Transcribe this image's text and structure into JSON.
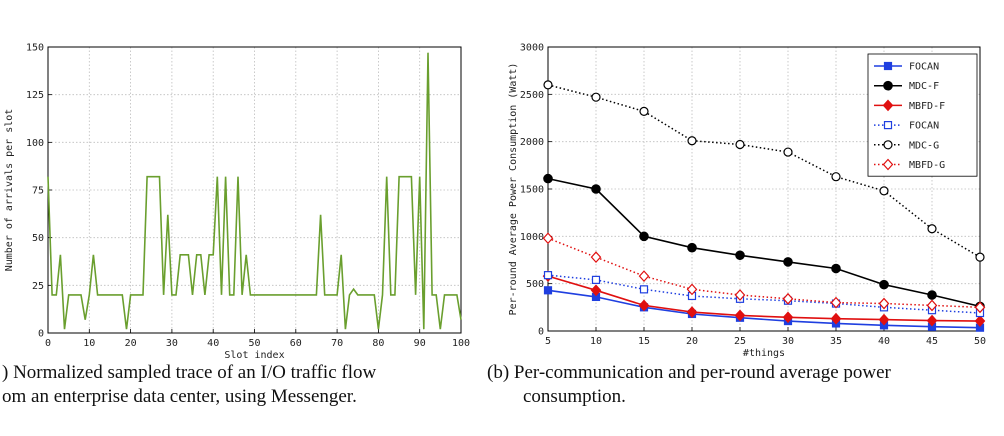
{
  "captions": {
    "a_line1": ") Normalized sampled trace of an I/O traffic flow",
    "a_line2": "om an enterprise data center, using Messenger.",
    "b_line1": "(b) Per-communication and per-round average power",
    "b_line2": "consumption."
  },
  "chart_data": [
    {
      "type": "line",
      "title": "",
      "xlabel": "Slot index",
      "ylabel": "Number of arrivals per slot",
      "xlim": [
        0,
        100
      ],
      "ylim": [
        0,
        150
      ],
      "xticks": [
        0,
        10,
        20,
        30,
        40,
        50,
        60,
        70,
        80,
        90,
        100
      ],
      "yticks": [
        0,
        25,
        50,
        75,
        100,
        125,
        150
      ],
      "grid": true,
      "color": "#6a9f2e",
      "series": [
        {
          "name": "",
          "x": [
            0,
            1,
            2,
            3,
            4,
            5,
            6,
            7,
            8,
            9,
            10,
            11,
            12,
            13,
            14,
            15,
            16,
            17,
            18,
            19,
            20,
            21,
            22,
            23,
            24,
            25,
            26,
            27,
            28,
            29,
            30,
            31,
            32,
            33,
            34,
            35,
            36,
            37,
            38,
            39,
            40,
            41,
            42,
            43,
            44,
            45,
            46,
            47,
            48,
            49,
            50,
            51,
            52,
            53,
            54,
            55,
            56,
            57,
            58,
            59,
            60,
            61,
            62,
            63,
            64,
            65,
            66,
            67,
            68,
            69,
            70,
            71,
            72,
            73,
            74,
            75,
            76,
            77,
            78,
            79,
            80,
            81,
            82,
            83,
            84,
            85,
            86,
            87,
            88,
            89,
            90,
            91,
            92,
            93,
            94,
            95,
            96,
            97,
            98,
            99,
            100
          ],
          "y": [
            82,
            20,
            20,
            41,
            2,
            20,
            20,
            20,
            20,
            7,
            20,
            41,
            20,
            20,
            20,
            20,
            20,
            20,
            20,
            2,
            20,
            20,
            20,
            20,
            82,
            82,
            82,
            82,
            20,
            62,
            20,
            20,
            41,
            41,
            41,
            20,
            41,
            41,
            20,
            41,
            41,
            82,
            20,
            82,
            20,
            20,
            82,
            20,
            41,
            20,
            20,
            20,
            20,
            20,
            20,
            20,
            20,
            20,
            20,
            20,
            20,
            20,
            20,
            20,
            20,
            20,
            62,
            20,
            20,
            20,
            20,
            41,
            2,
            20,
            23,
            20,
            20,
            20,
            20,
            20,
            2,
            20,
            82,
            20,
            20,
            82,
            82,
            82,
            82,
            20,
            82,
            2,
            147,
            20,
            20,
            2,
            20,
            20,
            20,
            20,
            7
          ]
        }
      ]
    },
    {
      "type": "line",
      "title": "",
      "xlabel": "#things",
      "ylabel": "Per-round Average Power Consumption (Watt)",
      "xlim": [
        5,
        50
      ],
      "ylim": [
        0,
        3000
      ],
      "xticks": [
        5,
        10,
        15,
        20,
        25,
        30,
        35,
        40,
        45,
        50
      ],
      "yticks": [
        0,
        500,
        1000,
        1500,
        2000,
        2500,
        3000
      ],
      "grid": true,
      "legend": "top-right",
      "x": [
        5,
        10,
        15,
        20,
        25,
        30,
        35,
        40,
        45,
        50
      ],
      "series": [
        {
          "name": "FOCAN",
          "values": [
            430,
            360,
            250,
            180,
            140,
            105,
            80,
            60,
            45,
            35
          ],
          "color": "#1f3fe0",
          "marker": "square-filled",
          "dash": "solid"
        },
        {
          "name": "MDC-F",
          "values": [
            1610,
            1500,
            1000,
            880,
            800,
            730,
            660,
            490,
            380,
            260
          ],
          "color": "#000000",
          "marker": "circle-filled",
          "dash": "solid"
        },
        {
          "name": "MBFD-F",
          "values": [
            580,
            430,
            270,
            200,
            165,
            145,
            130,
            120,
            110,
            105
          ],
          "color": "#e01010",
          "marker": "diamond-filled",
          "dash": "solid"
        },
        {
          "name": "FOCAN",
          "values": [
            590,
            540,
            440,
            370,
            340,
            320,
            290,
            250,
            220,
            190
          ],
          "color": "#1f3fe0",
          "marker": "square-open",
          "dash": "dotted"
        },
        {
          "name": "MDC-G",
          "values": [
            2600,
            2470,
            2320,
            2010,
            1970,
            1890,
            1630,
            1480,
            1080,
            780
          ],
          "color": "#000000",
          "marker": "circle-open",
          "dash": "dotted"
        },
        {
          "name": "MBFD-G",
          "values": [
            980,
            780,
            580,
            440,
            380,
            340,
            300,
            290,
            270,
            250
          ],
          "color": "#e01010",
          "marker": "diamond-open",
          "dash": "dotted"
        }
      ]
    }
  ]
}
